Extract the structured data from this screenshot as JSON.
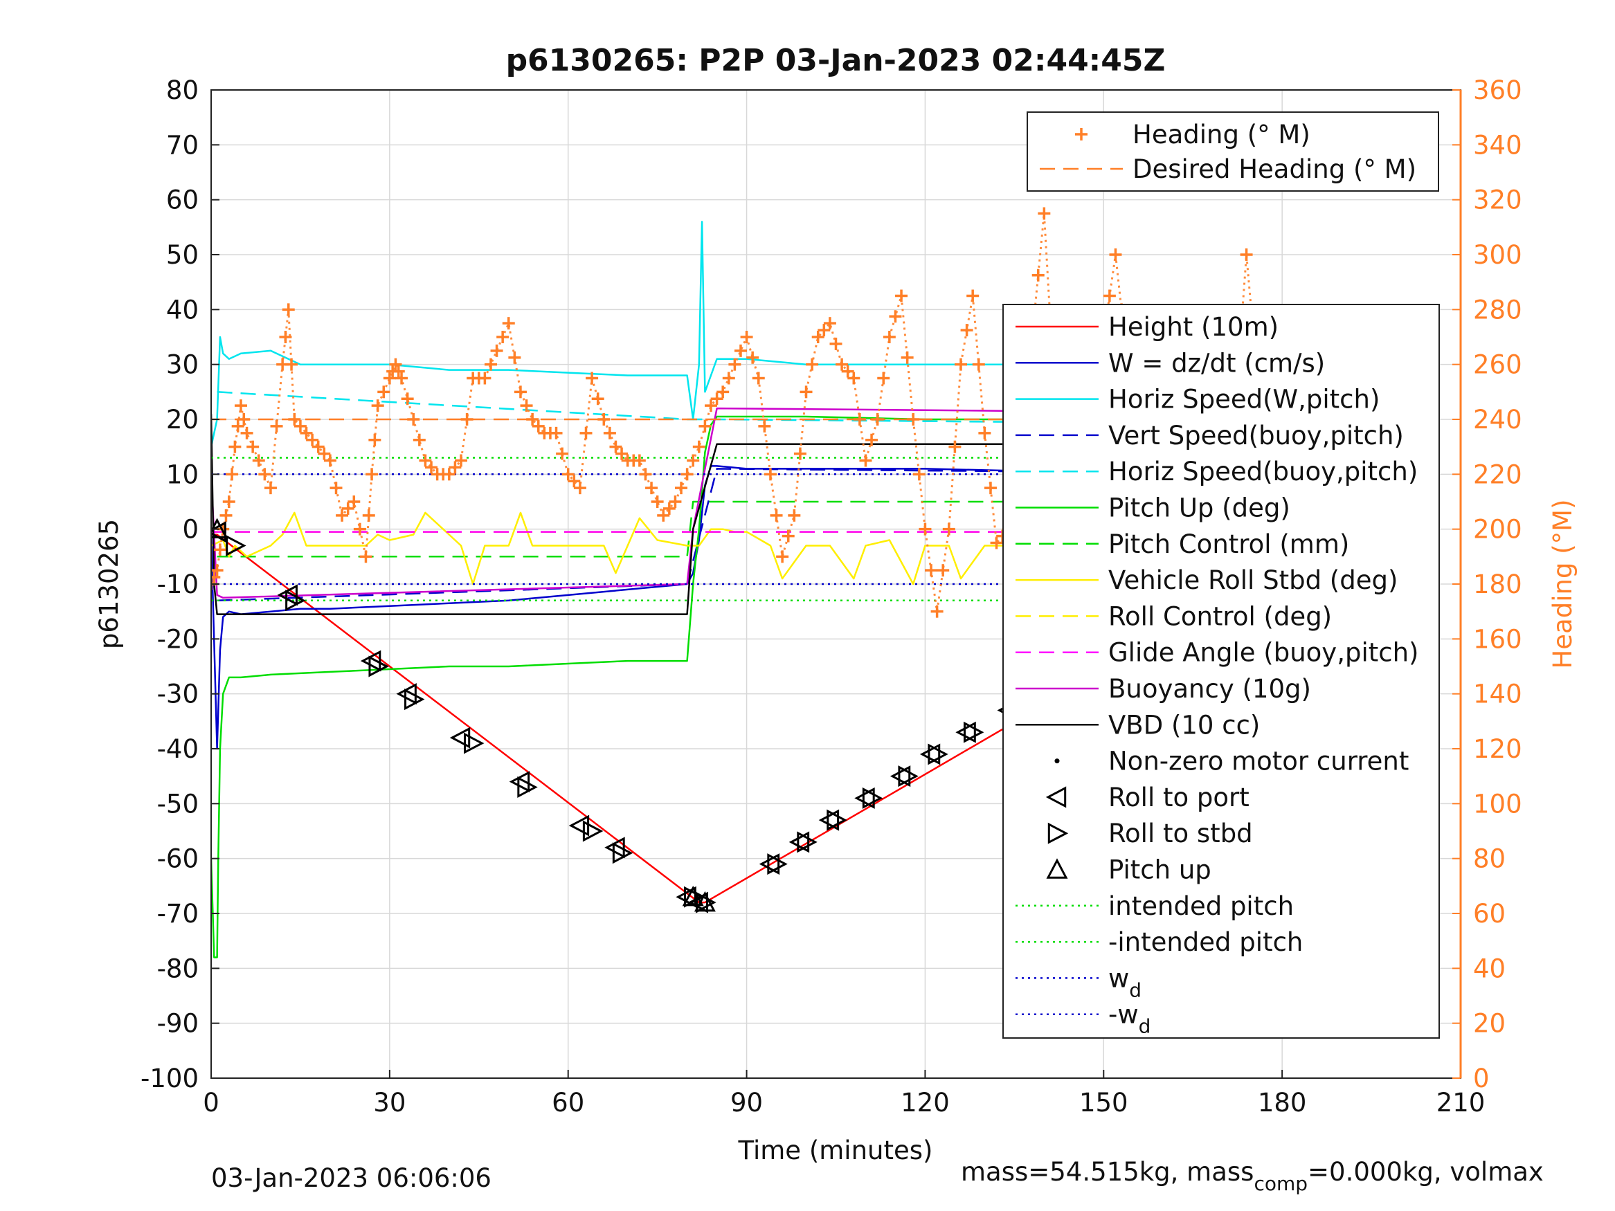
{
  "chart_data": {
    "type": "line",
    "title": "p6130265: P2P 03-Jan-2023 02:44:45Z",
    "xlabel": "Time (minutes)",
    "ylabel": "p6130265",
    "ylabel_right": "Heading (°M)",
    "xlim": [
      0,
      210
    ],
    "ylim": [
      -100,
      80
    ],
    "ylim_right": [
      0,
      360
    ],
    "xticks": [
      "0",
      "30",
      "60",
      "90",
      "120",
      "150",
      "180",
      "210"
    ],
    "yticks": [
      "80",
      "70",
      "60",
      "50",
      "40",
      "30",
      "20",
      "10",
      "0",
      "-10",
      "-20",
      "-30",
      "-40",
      "-50",
      "-60",
      "-70",
      "-80",
      "-90",
      "-100"
    ],
    "yticks_right": [
      "360",
      "340",
      "320",
      "300",
      "280",
      "260",
      "240",
      "220",
      "200",
      "180",
      "160",
      "140",
      "120",
      "100",
      "80",
      "60",
      "40",
      "20",
      "0"
    ],
    "grid": true,
    "colors": {
      "heading": "#ff7f27",
      "height": "#ff0000",
      "w": "#0000cc",
      "horiz": "#00e5ee",
      "pitch": "#00dd00",
      "roll": "#ffee00",
      "glide": "#ff00ff",
      "vbd": "#000000"
    },
    "footer_left": "03-Jan-2023 06:06:06",
    "footer_right": {
      "a": "mass=54.515kg, mass",
      "sub": "comp",
      "b": "=0.000kg, volmax"
    },
    "legend_heading": [
      {
        "label": "Heading (° M)",
        "style": "plus",
        "color": "#ff7f27"
      },
      {
        "label": "Desired Heading (° M)",
        "style": "dash",
        "color": "#ff7f27"
      }
    ],
    "legend_main": [
      {
        "label": "Height (10m)",
        "style": "solid",
        "color": "#ff0000"
      },
      {
        "label": "W = dz/dt (cm/s)",
        "style": "solid",
        "color": "#0000cc"
      },
      {
        "label": "Horiz Speed(W,pitch)",
        "style": "solid",
        "color": "#00e5ee"
      },
      {
        "label": "Vert Speed(buoy,pitch)",
        "style": "dash",
        "color": "#0000cc"
      },
      {
        "label": "Horiz Speed(buoy,pitch)",
        "style": "dash",
        "color": "#00e5ee"
      },
      {
        "label": "Pitch Up (deg)",
        "style": "solid",
        "color": "#00dd00"
      },
      {
        "label": "Pitch Control (mm)",
        "style": "dash",
        "color": "#00dd00"
      },
      {
        "label": "Vehicle Roll Stbd (deg)",
        "style": "solid",
        "color": "#ffee00"
      },
      {
        "label": "Roll Control (deg)",
        "style": "dash",
        "color": "#ffee00"
      },
      {
        "label": "Glide Angle (buoy,pitch)",
        "style": "dash",
        "color": "#ff00ff"
      },
      {
        "label": "Buoyancy (10g)",
        "style": "solid",
        "color": "#cc00cc"
      },
      {
        "label": "VBD (10 cc)",
        "style": "solid",
        "color": "#000000"
      },
      {
        "label": "Non-zero motor current",
        "style": "dot",
        "color": "#000000"
      },
      {
        "label": "Roll to port",
        "style": "tri-left",
        "color": "#000000"
      },
      {
        "label": "Roll to stbd",
        "style": "tri-right",
        "color": "#000000"
      },
      {
        "label": "Pitch up",
        "style": "tri-up",
        "color": "#000000"
      },
      {
        "label": "intended pitch",
        "style": "dotted",
        "color": "#00dd00"
      },
      {
        "label": "-intended pitch",
        "style": "dotted",
        "color": "#00dd00"
      },
      {
        "label": "w",
        "sub": "d",
        "style": "dotted",
        "color": "#0000cc"
      },
      {
        "label": "-w",
        "sub": "d",
        "style": "dotted",
        "color": "#0000cc"
      }
    ],
    "series": [
      {
        "name": "Height (10m)",
        "axis": "left",
        "x": [
          0,
          1,
          82,
          83,
          190
        ],
        "y": [
          -1,
          -1,
          -68,
          -68,
          -0.5
        ]
      },
      {
        "name": "W = dz/dt (cm/s)",
        "axis": "left",
        "x": [
          0,
          1,
          1.5,
          2,
          3,
          5,
          10,
          15,
          20,
          30,
          40,
          50,
          60,
          70,
          80,
          81,
          82,
          83,
          84,
          85,
          90,
          100,
          120,
          140,
          160,
          180,
          190
        ],
        "y": [
          -1,
          -40,
          -22,
          -16,
          -15,
          -15.5,
          -15,
          -14.5,
          -14.5,
          -14,
          -13.5,
          -13,
          -12,
          -11,
          -10,
          -8,
          -2,
          8,
          11.5,
          11.5,
          11,
          11,
          11,
          10.5,
          10.5,
          10,
          10
        ]
      },
      {
        "name": "Horiz Speed(W,pitch)",
        "axis": "left",
        "x": [
          0,
          1,
          1.5,
          2,
          3,
          5,
          10,
          15,
          20,
          30,
          40,
          50,
          60,
          70,
          80,
          81,
          82,
          82.5,
          83,
          84,
          85,
          90,
          100,
          120,
          140,
          160,
          180,
          190
        ],
        "y": [
          15,
          20,
          35,
          32,
          31,
          32,
          32.5,
          30,
          30,
          30,
          29,
          29,
          28.5,
          28,
          28,
          20,
          30,
          56,
          25,
          28,
          31,
          31,
          30,
          30,
          30,
          29,
          29,
          29
        ]
      },
      {
        "name": "Vert Speed(buoy,pitch)",
        "axis": "left",
        "x": [
          1,
          80,
          85,
          190
        ],
        "y": [
          -13,
          -10,
          11,
          10
        ]
      },
      {
        "name": "Horiz Speed(buoy,pitch)",
        "axis": "left",
        "x": [
          1,
          80,
          85,
          190
        ],
        "y": [
          25,
          20,
          20,
          19
        ]
      },
      {
        "name": "Pitch Up (deg)",
        "axis": "left",
        "x": [
          0,
          0.5,
          1,
          1.2,
          1.5,
          2,
          3,
          5,
          10,
          20,
          30,
          40,
          50,
          60,
          70,
          80,
          81,
          82,
          83,
          84,
          85,
          90,
          100,
          120,
          140,
          160,
          180,
          190
        ],
        "y": [
          -60,
          -78,
          -78,
          -60,
          -40,
          -30,
          -27,
          -27,
          -26.5,
          -26,
          -25.5,
          -25,
          -25,
          -24.5,
          -24,
          -24,
          -10,
          0,
          14,
          19,
          20.5,
          20.5,
          20.5,
          20,
          20,
          19.5,
          19,
          19
        ]
      },
      {
        "name": "Pitch Control (mm)",
        "axis": "left",
        "x": [
          1,
          80,
          81,
          190
        ],
        "y": [
          -5,
          -5,
          5,
          5
        ]
      },
      {
        "name": "Vehicle Roll Stbd (deg)",
        "axis": "left",
        "x": [
          0,
          2,
          3,
          4,
          6,
          10,
          12,
          14,
          16,
          20,
          26,
          28,
          30,
          34,
          36,
          42,
          44,
          46,
          50,
          52,
          54,
          58,
          62,
          66,
          68,
          70,
          72,
          75,
          80,
          82,
          84,
          86,
          88,
          90,
          94,
          96,
          100,
          104,
          108,
          110,
          114,
          118,
          120,
          124,
          126,
          130,
          134,
          136,
          140,
          144,
          146,
          150,
          154,
          156,
          160,
          164,
          168,
          172,
          176,
          180,
          184,
          188,
          190
        ],
        "y": [
          -3,
          -2,
          -5,
          -3,
          -5,
          -3,
          -1,
          3,
          -3,
          -3,
          -3,
          -1,
          -2,
          -1,
          3,
          -3,
          -10,
          -3,
          -3,
          3,
          -3,
          -3,
          -3,
          -3,
          -8,
          -3,
          2,
          -2,
          -3,
          -3,
          0,
          0,
          -0.5,
          -0.5,
          -3,
          -9,
          -3,
          -3,
          -9,
          -3,
          -2,
          -10,
          -3,
          -3,
          -9,
          -3,
          -3,
          -10,
          -3,
          -3,
          -10,
          -3,
          -2,
          -8,
          -3,
          -3,
          -9,
          -3,
          -3,
          -9,
          -3,
          -3,
          -3
        ]
      },
      {
        "name": "Roll Control (deg)",
        "axis": "left",
        "x": [
          0,
          190
        ],
        "y": [
          -0.5,
          -0.5
        ]
      },
      {
        "name": "Glide Angle (buoy,pitch)",
        "axis": "left",
        "x": [
          0,
          190
        ],
        "y": [
          -0.5,
          -0.5
        ]
      },
      {
        "name": "Buoyancy (10g)",
        "axis": "left",
        "x": [
          0,
          1,
          2,
          80,
          81,
          85,
          190
        ],
        "y": [
          10,
          -12,
          -12.5,
          -10,
          0,
          22,
          21
        ]
      },
      {
        "name": "VBD (10 cc)",
        "axis": "left",
        "x": [
          0,
          0.5,
          1,
          80,
          81,
          85,
          190
        ],
        "y": [
          21,
          -10,
          -15.5,
          -15.5,
          0,
          15.5,
          15.5
        ]
      },
      {
        "name": "Desired Heading (° M)",
        "axis": "right",
        "x": [
          0,
          190
        ],
        "y": [
          240,
          240
        ]
      },
      {
        "name": "intended pitch",
        "axis": "left",
        "x": [
          0,
          190
        ],
        "y": [
          13,
          13
        ]
      },
      {
        "name": "-intended pitch",
        "axis": "left",
        "x": [
          0,
          190
        ],
        "y": [
          -13,
          -13
        ]
      },
      {
        "name": "w_d",
        "axis": "left",
        "x": [
          0,
          190
        ],
        "y": [
          10,
          10
        ]
      },
      {
        "name": "-w_d",
        "axis": "left",
        "x": [
          0,
          190
        ],
        "y": [
          -10,
          -10
        ]
      },
      {
        "name": "Heading (° M)",
        "axis": "right",
        "x": [
          0,
          1,
          2,
          3,
          4,
          5,
          6,
          8,
          10,
          12,
          13,
          14,
          16,
          18,
          20,
          22,
          24,
          26,
          27,
          28,
          30,
          31,
          32,
          34,
          36,
          38,
          40,
          42,
          44,
          46,
          48,
          50,
          52,
          54,
          56,
          58,
          60,
          62,
          64,
          66,
          68,
          70,
          72,
          74,
          76,
          78,
          80,
          82,
          84,
          86,
          88,
          90,
          92,
          94,
          96,
          98,
          100,
          102,
          104,
          106,
          108,
          110,
          112,
          114,
          116,
          118,
          120,
          122,
          124,
          126,
          128,
          130,
          132,
          134,
          136,
          138,
          140,
          142,
          144,
          146,
          148,
          150,
          152,
          154,
          156,
          158,
          160,
          162,
          164,
          166,
          168,
          170,
          172,
          174,
          176,
          178,
          180,
          182,
          184,
          186,
          188
        ],
        "y": [
          180,
          185,
          200,
          210,
          230,
          245,
          235,
          225,
          215,
          260,
          280,
          240,
          235,
          230,
          225,
          205,
          210,
          190,
          220,
          245,
          255,
          260,
          255,
          240,
          225,
          220,
          220,
          225,
          255,
          255,
          265,
          275,
          250,
          240,
          235,
          235,
          220,
          215,
          255,
          240,
          230,
          225,
          225,
          215,
          205,
          210,
          220,
          230,
          245,
          250,
          260,
          270,
          255,
          220,
          190,
          205,
          250,
          270,
          275,
          260,
          255,
          225,
          240,
          270,
          285,
          240,
          200,
          170,
          200,
          260,
          285,
          235,
          195,
          200,
          240,
          270,
          315,
          240,
          190,
          180,
          210,
          270,
          300,
          260,
          225,
          190,
          230,
          260,
          270,
          230,
          195,
          205,
          240,
          300,
          250,
          195,
          180,
          200,
          245,
          270,
          265
        ]
      },
      {
        "name": "Roll to port",
        "axis": "left",
        "marker": "tri-left",
        "x": [
          1,
          13,
          27,
          33,
          42,
          52,
          62,
          68,
          80,
          82,
          94,
          99,
          104,
          110,
          116,
          121,
          127,
          134,
          139,
          146,
          153,
          158,
          162,
          170,
          174,
          177,
          180,
          183,
          186,
          187
        ],
        "y": [
          -0.5,
          -12,
          -24,
          -30,
          -38,
          -46,
          -54,
          -58,
          -67,
          -68,
          -61,
          -57,
          -53,
          -49,
          -45,
          -41,
          -37,
          -33,
          -29,
          -25,
          -21,
          -18,
          -15,
          -11,
          -8,
          -6,
          -5,
          -3,
          -2,
          -1
        ]
      },
      {
        "name": "Roll to stbd",
        "axis": "left",
        "marker": "tri-right",
        "x": [
          4,
          14,
          28,
          34,
          44,
          53,
          64,
          69,
          81,
          83,
          95,
          100,
          105,
          111,
          117,
          122,
          128,
          135,
          140,
          147,
          154,
          159,
          163,
          171,
          175,
          178,
          181,
          184,
          187,
          188
        ],
        "y": [
          -3,
          -13,
          -25,
          -31,
          -39,
          -47,
          -55,
          -59,
          -67,
          -68,
          -61,
          -57,
          -53,
          -49,
          -45,
          -41,
          -37,
          -33,
          -29,
          -25,
          -21,
          -18,
          -15,
          -11,
          -8,
          -6,
          -5,
          -3,
          -2,
          -1
        ]
      },
      {
        "name": "Pitch up",
        "axis": "left",
        "marker": "tri-up",
        "x": [
          1,
          81,
          83
        ],
        "y": [
          0,
          -67,
          -68
        ]
      }
    ]
  }
}
